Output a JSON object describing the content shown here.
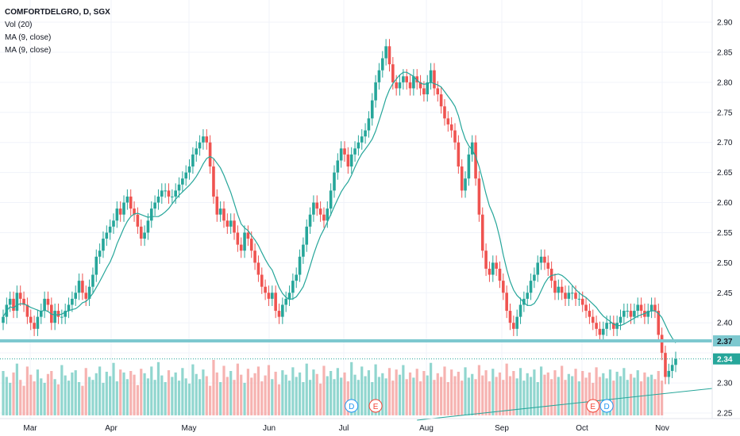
{
  "legend": {
    "symbol": "COMFORTDELGRO, D, SGX",
    "vol": "Vol (20)",
    "ma1": "MA (9, close)",
    "ma2": "MA (9, close)"
  },
  "chart_data": {
    "type": "candlestick",
    "y_ticks": [
      "2.90",
      "2.85",
      "2.80",
      "2.75",
      "2.70",
      "2.65",
      "2.60",
      "2.55",
      "2.50",
      "2.45",
      "2.40",
      "2.35",
      "2.30",
      "2.25"
    ],
    "ylim": [
      2.243,
      2.919
    ],
    "x_labels": [
      "Mar",
      "Apr",
      "May",
      "Jun",
      "Jul",
      "Aug",
      "Sep",
      "Oct",
      "Nov"
    ],
    "resistance_line": {
      "value": 2.37,
      "label": "2.37"
    },
    "last_price": {
      "value": 2.34,
      "label": "2.34"
    },
    "events": [
      {
        "label": "D",
        "color": "#2196f3",
        "index": 101
      },
      {
        "label": "E",
        "color": "#f44336",
        "index": 108
      },
      {
        "label": "E",
        "color": "#f44336",
        "index": 171
      },
      {
        "label": "D",
        "color": "#2196f3",
        "index": 175
      }
    ],
    "series": [
      {
        "name": "price",
        "values": [
          2.41,
          2.43,
          2.44,
          2.42,
          2.45,
          2.44,
          2.43,
          2.41,
          2.4,
          2.39,
          2.41,
          2.42,
          2.44,
          2.43,
          2.4,
          2.42,
          2.41,
          2.41,
          2.42,
          2.43,
          2.44,
          2.45,
          2.47,
          2.45,
          2.44,
          2.46,
          2.48,
          2.51,
          2.52,
          2.54,
          2.55,
          2.56,
          2.57,
          2.59,
          2.58,
          2.6,
          2.61,
          2.59,
          2.58,
          2.56,
          2.54,
          2.55,
          2.57,
          2.59,
          2.6,
          2.61,
          2.62,
          2.62,
          2.61,
          2.61,
          2.62,
          2.63,
          2.64,
          2.65,
          2.66,
          2.68,
          2.69,
          2.7,
          2.71,
          2.7,
          2.66,
          2.61,
          2.58,
          2.59,
          2.57,
          2.56,
          2.57,
          2.55,
          2.53,
          2.52,
          2.55,
          2.54,
          2.52,
          2.5,
          2.48,
          2.46,
          2.45,
          2.44,
          2.45,
          2.42,
          2.41,
          2.43,
          2.44,
          2.45,
          2.47,
          2.48,
          2.51,
          2.53,
          2.56,
          2.58,
          2.6,
          2.59,
          2.58,
          2.57,
          2.59,
          2.62,
          2.65,
          2.67,
          2.69,
          2.68,
          2.66,
          2.68,
          2.69,
          2.7,
          2.71,
          2.72,
          2.74,
          2.77,
          2.8,
          2.82,
          2.84,
          2.86,
          2.83,
          2.8,
          2.79,
          2.8,
          2.81,
          2.8,
          2.79,
          2.81,
          2.8,
          2.79,
          2.78,
          2.8,
          2.82,
          2.79,
          2.78,
          2.76,
          2.74,
          2.73,
          2.72,
          2.7,
          2.66,
          2.62,
          2.64,
          2.68,
          2.7,
          2.64,
          2.58,
          2.52,
          2.49,
          2.48,
          2.5,
          2.49,
          2.47,
          2.45,
          2.42,
          2.4,
          2.39,
          2.41,
          2.43,
          2.44,
          2.45,
          2.47,
          2.48,
          2.5,
          2.51,
          2.5,
          2.49,
          2.47,
          2.45,
          2.46,
          2.45,
          2.44,
          2.45,
          2.45,
          2.44,
          2.44,
          2.43,
          2.42,
          2.41,
          2.4,
          2.39,
          2.38,
          2.39,
          2.4,
          2.4,
          2.39,
          2.4,
          2.41,
          2.42,
          2.42,
          2.41,
          2.42,
          2.43,
          2.42,
          2.41,
          2.42,
          2.43,
          2.42,
          2.38,
          2.35,
          2.31,
          2.32,
          2.33,
          2.34
        ]
      },
      {
        "name": "volume",
        "values": [
          60,
          52,
          44,
          58,
          70,
          48,
          40,
          66,
          55,
          46,
          62,
          50,
          44,
          56,
          60,
          49,
          42,
          68,
          54,
          47,
          58,
          61,
          45,
          40,
          64,
          52,
          48,
          57,
          66,
          44,
          59,
          53,
          71,
          46,
          62,
          58,
          49,
          60,
          55,
          41,
          63,
          57,
          50,
          66,
          48,
          72,
          54,
          45,
          61,
          52,
          58,
          47,
          64,
          50,
          43,
          69,
          56,
          49,
          62,
          53,
          40,
          75,
          58,
          45,
          67,
          52,
          60,
          48,
          70,
          55,
          44,
          63,
          51,
          57,
          66,
          46,
          54,
          68,
          49,
          59,
          42,
          61,
          55,
          47,
          65,
          52,
          58,
          45,
          70,
          48,
          62,
          56,
          43,
          67,
          53,
          60,
          49,
          64,
          51,
          58,
          46,
          72,
          55,
          48,
          66,
          53,
          61,
          45,
          69,
          52,
          57,
          50,
          64,
          47,
          62,
          55,
          68,
          49,
          58,
          51,
          63,
          46,
          60,
          54,
          71,
          48,
          57,
          52,
          66,
          45,
          62,
          53,
          59,
          47,
          65,
          51,
          56,
          49,
          68,
          54,
          61,
          46,
          63,
          52,
          58,
          48,
          70,
          53,
          60,
          50,
          64,
          47,
          57,
          52,
          62,
          45,
          66,
          55,
          58,
          49,
          61,
          52,
          67,
          48,
          56,
          53,
          63,
          46,
          60,
          51,
          58,
          44,
          65,
          52,
          57,
          50,
          62,
          47,
          59,
          53,
          64,
          48,
          56,
          51,
          61,
          46,
          58,
          52,
          55,
          49,
          60,
          47
        ]
      }
    ]
  }
}
